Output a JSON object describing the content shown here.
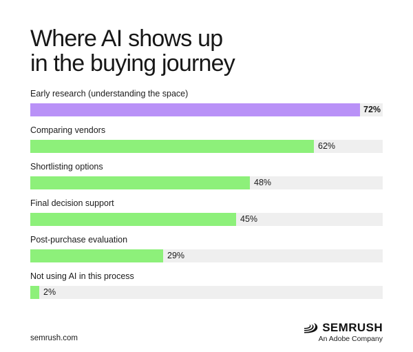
{
  "title_lines": [
    "Where AI shows up",
    "in the buying journey"
  ],
  "chart_data": {
    "type": "bar",
    "orientation": "horizontal",
    "title": "Where AI shows up in the buying journey",
    "categories": [
      "Early research (understanding the space)",
      "Comparing vendors",
      "Shortlisting options",
      "Final decision support",
      "Post-purchase evaluation",
      "Not using AI in this process"
    ],
    "values": [
      72,
      62,
      48,
      45,
      29,
      2
    ],
    "value_labels": [
      "72%",
      "62%",
      "48%",
      "45%",
      "29%",
      "2%"
    ],
    "unit": "%",
    "xlim": [
      0,
      77
    ],
    "highlight_index": 0,
    "colors": {
      "highlight": "#b991f7",
      "bar": "#8df07a",
      "track": "#efefef"
    },
    "grid": false,
    "legend": "none"
  },
  "footer": {
    "site": "semrush.com",
    "brand_name": "SEMRUSH",
    "brand_sub": "An Adobe Company",
    "brand_icon": "semrush-flame-icon"
  }
}
